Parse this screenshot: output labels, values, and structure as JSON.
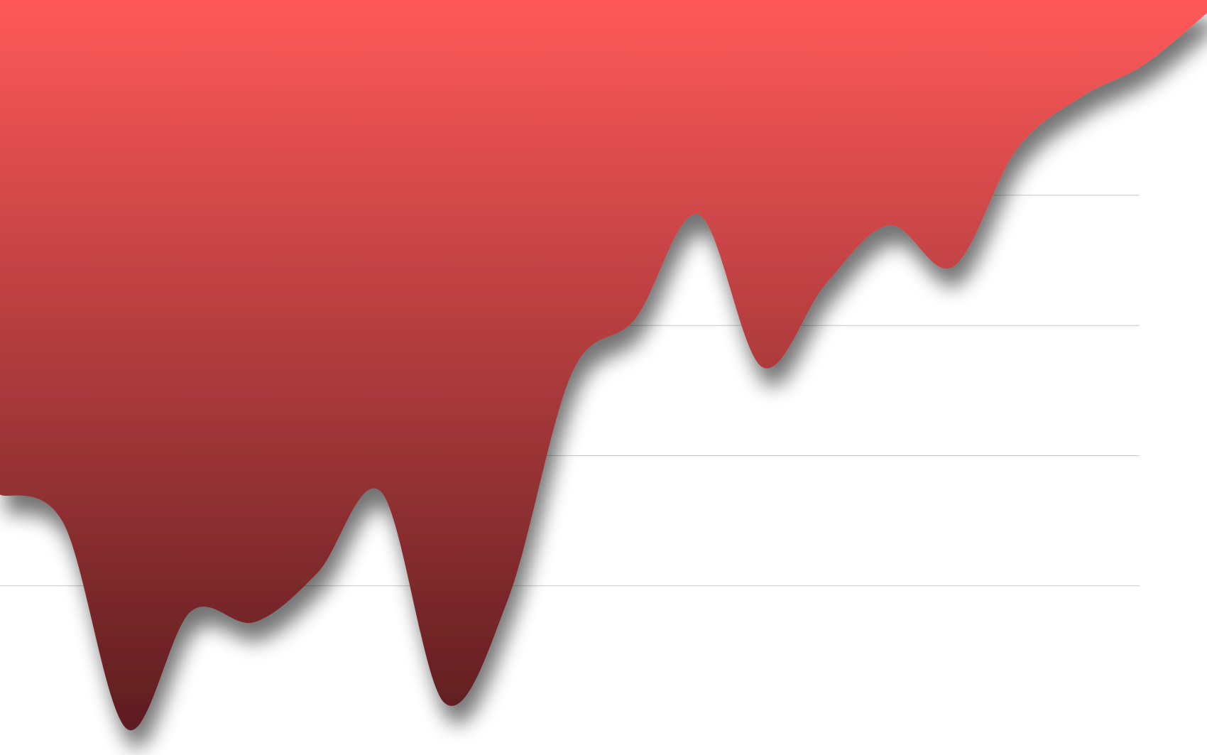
{
  "chart_data": {
    "type": "area",
    "title": "",
    "xlabel": "",
    "ylabel": "",
    "grid": true,
    "legend": "none",
    "gridlines": [
      0,
      1,
      2,
      3,
      4
    ],
    "ylim": [
      -1.3,
      4.5
    ],
    "x": [
      0,
      1,
      2,
      3,
      4,
      5,
      6,
      7,
      8,
      9,
      10,
      11,
      12,
      13,
      14,
      15,
      16,
      17,
      18,
      19
    ],
    "series": [
      {
        "values": [
          0.7,
          0.48,
          -1.1,
          -0.2,
          -0.28,
          0.1,
          0.72,
          -0.9,
          -0.1,
          1.63,
          2.05,
          2.85,
          1.68,
          2.32,
          2.77,
          2.45,
          3.35,
          3.75,
          4.0,
          4.4
        ]
      }
    ],
    "colors": {
      "fill_top": "#ff5959",
      "fill_bottom": "#5c1d20",
      "grid": "#c8c8c8",
      "background": "#ffffff"
    }
  }
}
